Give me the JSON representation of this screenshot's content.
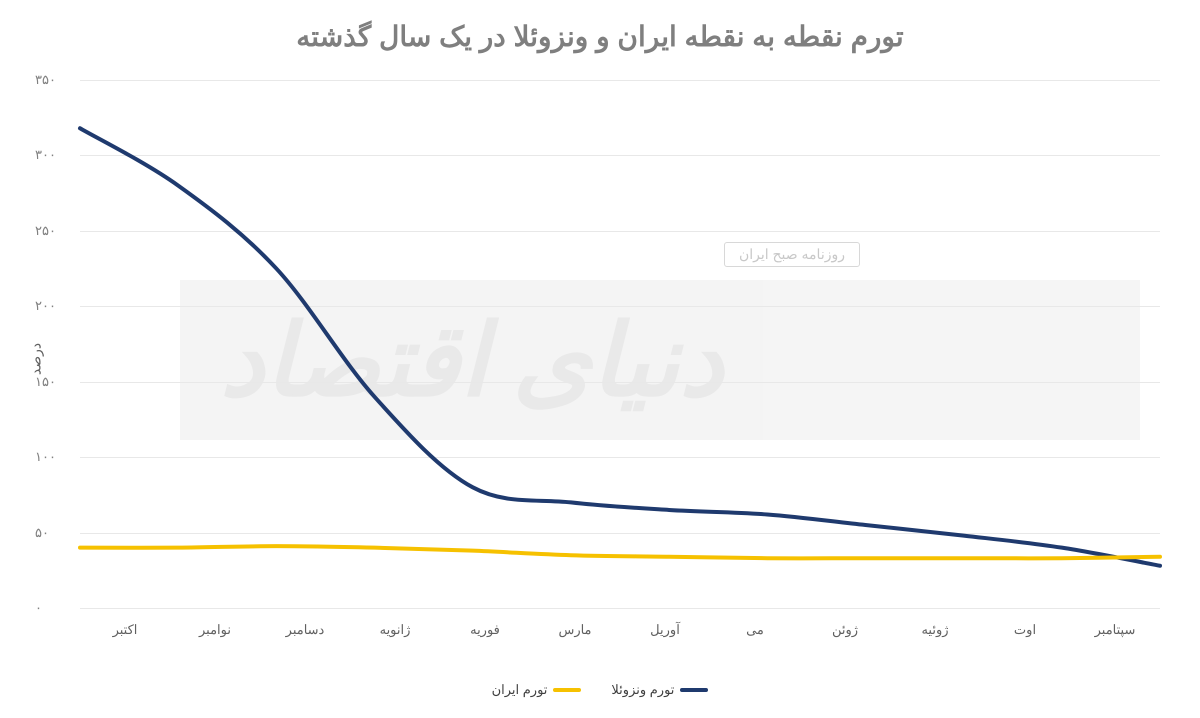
{
  "chart": {
    "type": "line",
    "title": "تورم نقطه به نقطه ایران و ونزوئلا در یک سال گذشته",
    "title_color": "#7f7f7f",
    "title_fontsize": 28,
    "background_color": "#ffffff",
    "grid_color": "#e8e8e8",
    "ylabel": "درصد",
    "ylim": [
      0,
      350
    ],
    "ytick_step": 50,
    "yticks_persian": [
      "۰",
      "۵۰",
      "۱۰۰",
      "۱۵۰",
      "۲۰۰",
      "۲۵۰",
      "۳۰۰",
      "۳۵۰"
    ],
    "categories": [
      "اکتبر",
      "نوامبر",
      "دسامبر",
      "ژانویه",
      "فوریه",
      "مارس",
      "آوریل",
      "می",
      "ژوئن",
      "ژوئیه",
      "اوت",
      "سپتامبر"
    ],
    "series": [
      {
        "name": "تورم ونزوئلا",
        "color": "#1f3a6e",
        "line_width": 4,
        "values": [
          318,
          280,
          225,
          140,
          80,
          70,
          65,
          62,
          55,
          48,
          40,
          28
        ]
      },
      {
        "name": "تورم ایران",
        "color": "#f6c100",
        "line_width": 4,
        "values": [
          40,
          40,
          41,
          40,
          38,
          35,
          34,
          33,
          33,
          33,
          33,
          34
        ]
      }
    ],
    "legend_position": "bottom"
  },
  "watermark": {
    "main_text": "دنیای اقتصاد",
    "sub_text": "روزنامه صبح ایران",
    "bg_color": "#ececec",
    "text_color": "#d8d8d8"
  }
}
